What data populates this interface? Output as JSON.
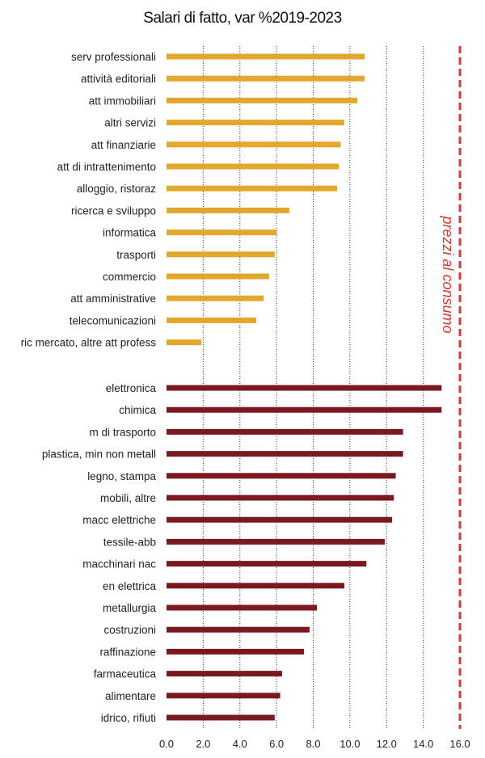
{
  "chart_data": {
    "type": "bar",
    "orientation": "horizontal",
    "title": "Salari di fatto, var %2019-2023",
    "xlim": [
      0,
      16
    ],
    "xticks": [
      "0.0",
      "2.0",
      "4.0",
      "6.0",
      "8.0",
      "10.0",
      "12.0",
      "14.0",
      "16.0"
    ],
    "grid": "vertical dotted",
    "series": [
      {
        "color": "#e2a82b",
        "categories": [
          "serv professionali",
          "attività editoriali",
          "att immobiliari",
          "altri servizi",
          "att finanziarie",
          "att di intrattenimento",
          "alloggio, ristoraz",
          "ricerca e sviluppo",
          "informatica",
          "trasporti",
          "commercio",
          "att amministrative",
          "telecomunicazioni",
          "ric mercato, altre att profess"
        ],
        "values": [
          10.8,
          10.8,
          10.4,
          9.7,
          9.5,
          9.4,
          9.3,
          6.7,
          6.0,
          5.9,
          5.6,
          5.3,
          4.9,
          1.9
        ]
      },
      {
        "color": "#7a1a20",
        "categories": [
          "elettronica",
          "chimica",
          "m di trasporto",
          "plastica, min non metall",
          "legno, stampa",
          "mobili, altre",
          "macc elettriche",
          "tessile-abb",
          "macchinari nac",
          "en elettrica",
          "metallurgia",
          "costruzioni",
          "raffinazione",
          "farmaceutica",
          "alimentare",
          "idrico, rifiuti"
        ],
        "values": [
          15.0,
          15.0,
          12.9,
          12.9,
          12.5,
          12.4,
          12.3,
          11.9,
          10.9,
          9.7,
          8.2,
          7.8,
          7.5,
          6.3,
          6.2,
          5.9
        ]
      }
    ],
    "reference_line": {
      "value": 16.0,
      "label": "prezzi al consumo",
      "color": "#d63a35"
    }
  }
}
